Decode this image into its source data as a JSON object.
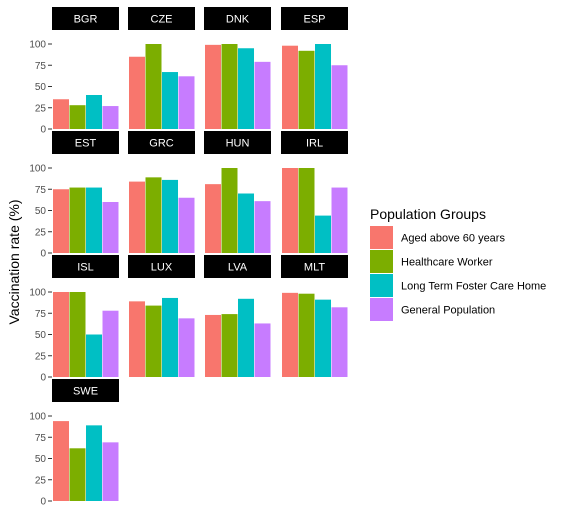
{
  "chart_data": {
    "type": "bar",
    "facet_by": "country",
    "ylabel": "Vaccination rate (%)",
    "ylim": [
      0,
      100
    ],
    "y_ticks": [
      "0",
      "25",
      "50",
      "75",
      "100"
    ],
    "legend_title": "Population Groups",
    "legend_position": "right",
    "grid": false,
    "series": [
      {
        "name": "Aged above 60 years",
        "color": "#F8766D"
      },
      {
        "name": "Healthcare Worker",
        "color": "#7CAE00"
      },
      {
        "name": "Long Term Foster Care Home",
        "color": "#00BFC4"
      },
      {
        "name": "General Population",
        "color": "#C77CFF"
      }
    ],
    "panels": [
      {
        "label": "BGR",
        "values": [
          35,
          28,
          40,
          27
        ]
      },
      {
        "label": "CZE",
        "values": [
          85,
          100,
          67,
          62
        ]
      },
      {
        "label": "DNK",
        "values": [
          99,
          100,
          95,
          79
        ]
      },
      {
        "label": "ESP",
        "values": [
          98,
          92,
          100,
          75
        ]
      },
      {
        "label": "EST",
        "values": [
          75,
          77,
          77,
          60
        ]
      },
      {
        "label": "GRC",
        "values": [
          84,
          89,
          86,
          65
        ]
      },
      {
        "label": "HUN",
        "values": [
          81,
          100,
          70,
          61
        ]
      },
      {
        "label": "IRL",
        "values": [
          100,
          100,
          44,
          77
        ]
      },
      {
        "label": "ISL",
        "values": [
          100,
          100,
          50,
          78
        ]
      },
      {
        "label": "LUX",
        "values": [
          89,
          84,
          93,
          69
        ]
      },
      {
        "label": "LVA",
        "values": [
          73,
          74,
          92,
          63
        ]
      },
      {
        "label": "MLT",
        "values": [
          99,
          98,
          91,
          82
        ]
      },
      {
        "label": "SWE",
        "values": [
          94,
          62,
          89,
          69
        ]
      }
    ]
  }
}
